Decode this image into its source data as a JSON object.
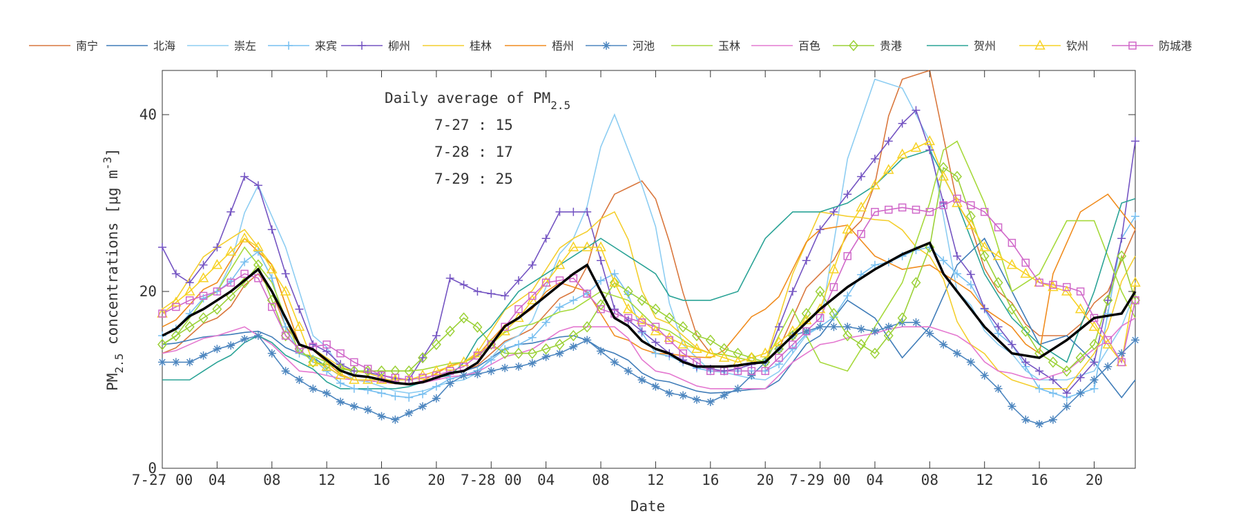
{
  "chart_data": {
    "type": "line",
    "xlabel": "Date",
    "ylabel": "PM",
    "ylabel_sub": "2.5",
    "ylabel_tail": " concentrations [μg m",
    "ylabel_sup": "-3",
    "ylabel_end": "]",
    "ylim": [
      0,
      45
    ],
    "xlim": [
      0,
      71
    ],
    "grid": false,
    "legend_position": "top",
    "yticks": [
      0,
      20,
      40
    ],
    "xticks": [
      {
        "x": 0,
        "label": "7-27 00"
      },
      {
        "x": 4,
        "label": "04"
      },
      {
        "x": 8,
        "label": "08"
      },
      {
        "x": 12,
        "label": "12"
      },
      {
        "x": 16,
        "label": "16"
      },
      {
        "x": 20,
        "label": "20"
      },
      {
        "x": 24,
        "label": "7-28 00"
      },
      {
        "x": 28,
        "label": "04"
      },
      {
        "x": 32,
        "label": "08"
      },
      {
        "x": 36,
        "label": "12"
      },
      {
        "x": 40,
        "label": "16"
      },
      {
        "x": 44,
        "label": "20"
      },
      {
        "x": 48,
        "label": "7-29 00"
      },
      {
        "x": 52,
        "label": "04"
      },
      {
        "x": 56,
        "label": "08"
      },
      {
        "x": 60,
        "label": "12"
      },
      {
        "x": 64,
        "label": "16"
      },
      {
        "x": 68,
        "label": "20"
      }
    ],
    "annotation": {
      "title": "Daily average of PM",
      "title_sub": "2.5",
      "lines": [
        "7-27 : 15",
        "7-28 : 17",
        "7-29 : 25"
      ]
    },
    "series": [
      {
        "name": "南宁",
        "color": "#d9773d",
        "marker": "none",
        "kx": [
          0,
          4,
          7,
          10,
          14,
          18,
          22,
          26,
          30,
          33,
          35,
          40,
          44,
          48,
          51,
          54,
          56,
          58,
          61,
          64,
          66,
          69,
          71
        ],
        "ky": [
          13,
          17,
          22,
          14,
          10.5,
          9.5,
          11,
          15,
          20,
          31,
          32.5,
          13,
          12,
          22,
          28,
          44,
          45,
          30,
          20,
          15,
          15,
          20,
          27
        ]
      },
      {
        "name": "北海",
        "color": "#3f7cb8",
        "marker": "none",
        "kx": [
          0,
          4,
          7,
          10,
          14,
          18,
          22,
          26,
          30,
          33,
          36,
          40,
          44,
          48,
          50,
          52,
          54,
          56,
          58,
          60,
          62,
          64,
          66,
          68,
          70,
          71
        ],
        "ky": [
          14,
          15,
          15.5,
          13,
          10,
          9.5,
          11,
          14,
          15,
          13,
          10,
          8.5,
          9,
          15,
          19,
          17,
          12.5,
          16,
          23,
          26,
          20,
          14,
          15,
          12,
          8,
          10
        ]
      },
      {
        "name": "崇左",
        "color": "#8dcdf2",
        "marker": "none",
        "kx": [
          0,
          4,
          7,
          9,
          11,
          14,
          18,
          22,
          26,
          30,
          33,
          35,
          38,
          40,
          44,
          48,
          50,
          52,
          54,
          56,
          58,
          61,
          64,
          66,
          68,
          70,
          71
        ],
        "ky": [
          14,
          20,
          32,
          25,
          15,
          10,
          8.5,
          10,
          15,
          26,
          40,
          32,
          14,
          11,
          10,
          16,
          35,
          44,
          43,
          37,
          20,
          14,
          10,
          10,
          11,
          16,
          20
        ]
      },
      {
        "name": "来宾",
        "color": "#77bff0",
        "marker": "plus",
        "kx": [
          0,
          4,
          7,
          10,
          14,
          18,
          22,
          26,
          30,
          33,
          36,
          40,
          44,
          48,
          52,
          56,
          58,
          62,
          64,
          66,
          68,
          70,
          71
        ],
        "ky": [
          15,
          20,
          24.5,
          13,
          9,
          8,
          10.5,
          14,
          19,
          22,
          13,
          11,
          11,
          16,
          23,
          25,
          22,
          14,
          9,
          8,
          9,
          26,
          28.5
        ]
      },
      {
        "name": "柳州",
        "color": "#7454c2",
        "marker": "plus",
        "kx": [
          0,
          1,
          2,
          4,
          6,
          7,
          9,
          11,
          14,
          18,
          20,
          21,
          23,
          25,
          27,
          29,
          31,
          33,
          35,
          37,
          39,
          41,
          44,
          46,
          48,
          50,
          52,
          54,
          55,
          56,
          58,
          61,
          63,
          65,
          66,
          68,
          70,
          71
        ],
        "ky": [
          25,
          22,
          21,
          25,
          33,
          32,
          22,
          14,
          11,
          10,
          15,
          21.5,
          20,
          19.5,
          23,
          29,
          29,
          18,
          15.5,
          13,
          11.5,
          11,
          12,
          20,
          27,
          31,
          35,
          39,
          40.5,
          36,
          24,
          16,
          12,
          10,
          8.5,
          12,
          26,
          37
        ]
      },
      {
        "name": "桂林",
        "color": "#f4ce2d",
        "marker": "none",
        "kx": [
          0,
          4,
          6,
          8,
          10,
          14,
          18,
          22,
          26,
          30,
          33,
          36,
          40,
          44,
          46,
          48,
          50,
          53,
          56,
          59,
          62,
          64,
          66,
          68,
          71
        ],
        "ky": [
          18,
          25,
          27,
          23,
          14,
          11,
          9.5,
          12,
          19,
          26,
          29,
          17,
          13,
          12,
          22,
          29,
          28.5,
          28,
          24,
          14,
          10,
          9,
          9,
          13,
          24
        ]
      },
      {
        "name": "梧州",
        "color": "#f08c1e",
        "marker": "none",
        "kx": [
          0,
          4,
          6,
          8,
          10,
          14,
          18,
          22,
          26,
          29,
          31,
          33,
          36,
          40,
          44,
          48,
          50,
          52,
          54,
          56,
          58,
          61,
          64,
          65,
          67,
          69,
          71
        ],
        "ky": [
          16,
          21,
          26,
          23,
          14,
          10,
          9.5,
          12,
          17,
          21,
          20,
          15,
          13,
          12.5,
          18,
          27,
          27.5,
          24,
          22.5,
          23,
          21,
          17,
          13,
          22,
          29,
          31,
          27
        ]
      },
      {
        "name": "河池",
        "color": "#4d86bf",
        "marker": "star",
        "kx": [
          0,
          2,
          4,
          7,
          9,
          11,
          14,
          17,
          19,
          22,
          26,
          29,
          31,
          33,
          35,
          37,
          40,
          42,
          44,
          46,
          48,
          50,
          52,
          54,
          55,
          57,
          59,
          61,
          62,
          63,
          64,
          65,
          66,
          68,
          70,
          71
        ],
        "ky": [
          12,
          12,
          13.5,
          15,
          11,
          9,
          7,
          5.5,
          7,
          10.5,
          11.5,
          13,
          14.5,
          12,
          10,
          8.5,
          7.5,
          9,
          12,
          15,
          16,
          16,
          15.5,
          16.5,
          16.5,
          14,
          12,
          9,
          7,
          5.5,
          5,
          5.5,
          7,
          10,
          13,
          14.5
        ]
      },
      {
        "name": "玉林",
        "color": "#a6d93b",
        "marker": "none",
        "kx": [
          0,
          4,
          6,
          8,
          10,
          14,
          18,
          22,
          26,
          30,
          32,
          34,
          36,
          40,
          44,
          46,
          48,
          50,
          52,
          54,
          56,
          57,
          58,
          60,
          62,
          64,
          66,
          68,
          70,
          71
        ],
        "ky": [
          14,
          20,
          25,
          21,
          13,
          11,
          11,
          12,
          16,
          18,
          20,
          19,
          16,
          13,
          12,
          18,
          12,
          11,
          16,
          21,
          30,
          36,
          37,
          30,
          20,
          22,
          28,
          28,
          20,
          17
        ]
      },
      {
        "name": "百色",
        "color": "#e478d0",
        "marker": "none",
        "kx": [
          0,
          4,
          6,
          8,
          10,
          14,
          18,
          22,
          26,
          30,
          33,
          36,
          40,
          44,
          46,
          48,
          51,
          54,
          56,
          58,
          61,
          64,
          66,
          68,
          71
        ],
        "ky": [
          13,
          15,
          16,
          14,
          11,
          10,
          9.5,
          10.5,
          13,
          16,
          16,
          11,
          9,
          9,
          12,
          14,
          15,
          16,
          16,
          15,
          11,
          10,
          11,
          13.5,
          17
        ]
      },
      {
        "name": "贵港",
        "color": "#9bd137",
        "marker": "diamond",
        "kx": [
          0,
          2,
          4,
          6,
          7,
          9,
          11,
          14,
          18,
          20,
          22,
          25,
          27,
          29,
          31,
          33,
          35,
          37,
          39,
          42,
          44,
          46,
          48,
          50,
          52,
          54,
          56,
          57,
          58,
          60,
          62,
          64,
          66,
          68,
          70,
          71
        ],
        "ky": [
          14,
          16,
          18,
          21,
          23,
          15,
          12,
          11,
          11,
          14,
          17,
          13,
          13,
          14,
          16,
          21,
          19,
          17,
          15,
          13,
          12,
          15,
          20,
          15,
          13,
          17,
          25,
          34,
          33,
          24,
          18,
          13,
          11,
          14,
          24,
          19
        ]
      },
      {
        "name": "贺州",
        "color": "#2aa396",
        "marker": "none",
        "kx": [
          0,
          2,
          4,
          7,
          10,
          13,
          17,
          21,
          24,
          26,
          28,
          30,
          32,
          34,
          36,
          37,
          38,
          40,
          42,
          44,
          46,
          48,
          50,
          52,
          54,
          56,
          58,
          60,
          62,
          64,
          66,
          68,
          70,
          71
        ],
        "ky": [
          10,
          10,
          12,
          15,
          12,
          9,
          9,
          10.5,
          16,
          20,
          22,
          24,
          26,
          24,
          22,
          19.5,
          19,
          19,
          20,
          26,
          29,
          29,
          30,
          32,
          35,
          36,
          30,
          22,
          17,
          14,
          12,
          20,
          30,
          30.5
        ]
      },
      {
        "name": "钦州",
        "color": "#f7d224",
        "marker": "triangle",
        "kx": [
          0,
          2,
          4,
          6,
          7,
          9,
          11,
          14,
          18,
          20,
          22,
          24,
          26,
          28,
          30,
          32,
          33,
          34,
          36,
          38,
          40,
          42,
          44,
          46,
          48,
          50,
          52,
          54,
          56,
          57,
          58,
          60,
          62,
          64,
          66,
          68,
          70,
          71
        ],
        "ky": [
          17.5,
          20,
          23,
          26,
          25,
          20,
          12,
          10,
          10,
          11,
          12,
          14,
          17,
          21,
          25,
          25,
          21,
          18,
          15.5,
          14,
          13,
          12,
          13,
          15.5,
          18,
          27,
          32,
          35.5,
          37,
          33,
          30,
          25,
          23,
          21,
          20,
          16,
          12,
          21
        ]
      },
      {
        "name": "防城港",
        "color": "#d068c9",
        "marker": "square",
        "kx": [
          0,
          2,
          4,
          6,
          7,
          9,
          10,
          12,
          14,
          16,
          18,
          20,
          22,
          24,
          26,
          28,
          30,
          32,
          34,
          36,
          38,
          40,
          42,
          44,
          46,
          48,
          50,
          52,
          54,
          56,
          58,
          60,
          62,
          64,
          66,
          67,
          68,
          70,
          71
        ],
        "ky": [
          17.5,
          19,
          20,
          22,
          21.5,
          15,
          13.5,
          14,
          12,
          10.5,
          10,
          10.5,
          11.5,
          14,
          18,
          21,
          21.5,
          18,
          17,
          16,
          13,
          11,
          11,
          11,
          14,
          17,
          24,
          29,
          29.5,
          29,
          30.5,
          29,
          25.5,
          21,
          20.5,
          20,
          17,
          12,
          19
        ]
      }
    ],
    "mean_series": {
      "name": "",
      "color": "#000000",
      "kx": [
        0,
        3,
        5,
        7,
        8,
        10,
        14,
        18,
        22,
        26,
        28,
        30,
        31,
        33,
        36,
        39,
        41,
        44,
        46,
        48,
        50,
        52,
        54,
        56,
        57,
        58,
        60,
        62,
        64,
        66,
        68,
        70,
        71
      ],
      "ky": [
        15,
        18,
        20,
        22.5,
        20,
        14,
        10.5,
        9.5,
        11,
        17,
        19.5,
        22,
        23,
        17,
        13.5,
        11.5,
        11.5,
        12,
        15,
        18,
        20.5,
        22.5,
        24.2,
        25.5,
        22,
        20,
        16,
        13,
        12.5,
        14.5,
        17,
        17.5,
        20
      ]
    }
  }
}
